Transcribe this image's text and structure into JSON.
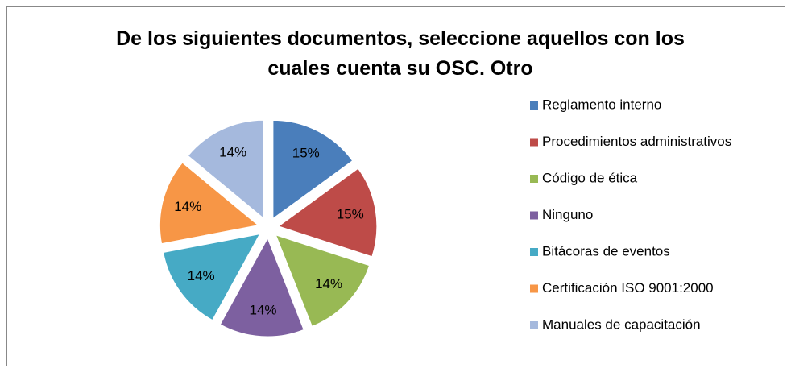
{
  "chart_data": {
    "type": "pie",
    "title": "De los siguientes documentos, seleccione aquellos con los cuales cuenta su OSC. Otro",
    "categories": [
      "Reglamento interno",
      "Procedimientos administrativos",
      "Código de ética",
      "Ninguno",
      "Bitácoras de eventos",
      "Certificación ISO 9001:2000",
      "Manuales de capacitación"
    ],
    "values": [
      15,
      15,
      14,
      14,
      14,
      14,
      14
    ],
    "value_labels": [
      "15%",
      "15%",
      "14%",
      "14%",
      "14%",
      "14%",
      "14%"
    ],
    "colors": [
      "#4a7ebb",
      "#be4b48",
      "#98b954",
      "#7d60a0",
      "#46aac5",
      "#f79646",
      "#a5b9dd"
    ],
    "legend": "right"
  }
}
